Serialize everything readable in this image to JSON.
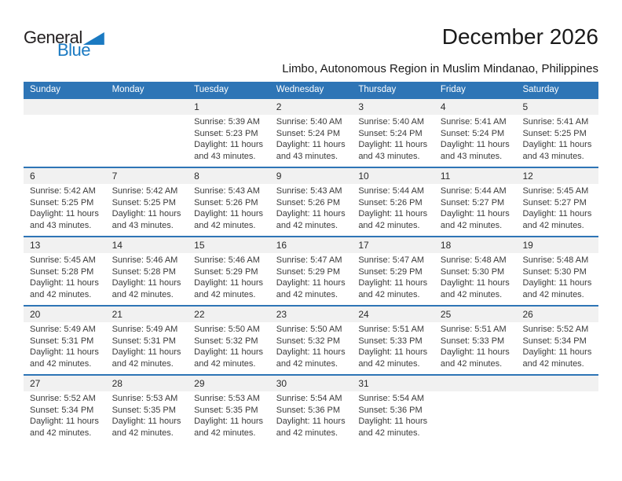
{
  "logo": {
    "part1": "General",
    "part2": "Blue"
  },
  "header": {
    "title": "December 2026",
    "subtitle": "Limbo, Autonomous Region in Muslim Mindanao, Philippines"
  },
  "colors": {
    "accent_blue": "#2E75B6",
    "logo_blue": "#1B7AC2",
    "number_strip_gray": "#F1F1F1"
  },
  "calendar": {
    "weekday_headers": [
      "Sunday",
      "Monday",
      "Tuesday",
      "Wednesday",
      "Thursday",
      "Friday",
      "Saturday"
    ],
    "labels": {
      "sunrise": "Sunrise:",
      "sunset": "Sunset:",
      "daylight": "Daylight:"
    },
    "weeks": [
      [
        {
          "day": null
        },
        {
          "day": null
        },
        {
          "day": "1",
          "sunrise": "5:39 AM",
          "sunset": "5:23 PM",
          "daylight": "11 hours and 43 minutes."
        },
        {
          "day": "2",
          "sunrise": "5:40 AM",
          "sunset": "5:24 PM",
          "daylight": "11 hours and 43 minutes."
        },
        {
          "day": "3",
          "sunrise": "5:40 AM",
          "sunset": "5:24 PM",
          "daylight": "11 hours and 43 minutes."
        },
        {
          "day": "4",
          "sunrise": "5:41 AM",
          "sunset": "5:24 PM",
          "daylight": "11 hours and 43 minutes."
        },
        {
          "day": "5",
          "sunrise": "5:41 AM",
          "sunset": "5:25 PM",
          "daylight": "11 hours and 43 minutes."
        }
      ],
      [
        {
          "day": "6",
          "sunrise": "5:42 AM",
          "sunset": "5:25 PM",
          "daylight": "11 hours and 43 minutes."
        },
        {
          "day": "7",
          "sunrise": "5:42 AM",
          "sunset": "5:25 PM",
          "daylight": "11 hours and 43 minutes."
        },
        {
          "day": "8",
          "sunrise": "5:43 AM",
          "sunset": "5:26 PM",
          "daylight": "11 hours and 42 minutes."
        },
        {
          "day": "9",
          "sunrise": "5:43 AM",
          "sunset": "5:26 PM",
          "daylight": "11 hours and 42 minutes."
        },
        {
          "day": "10",
          "sunrise": "5:44 AM",
          "sunset": "5:26 PM",
          "daylight": "11 hours and 42 minutes."
        },
        {
          "day": "11",
          "sunrise": "5:44 AM",
          "sunset": "5:27 PM",
          "daylight": "11 hours and 42 minutes."
        },
        {
          "day": "12",
          "sunrise": "5:45 AM",
          "sunset": "5:27 PM",
          "daylight": "11 hours and 42 minutes."
        }
      ],
      [
        {
          "day": "13",
          "sunrise": "5:45 AM",
          "sunset": "5:28 PM",
          "daylight": "11 hours and 42 minutes."
        },
        {
          "day": "14",
          "sunrise": "5:46 AM",
          "sunset": "5:28 PM",
          "daylight": "11 hours and 42 minutes."
        },
        {
          "day": "15",
          "sunrise": "5:46 AM",
          "sunset": "5:29 PM",
          "daylight": "11 hours and 42 minutes."
        },
        {
          "day": "16",
          "sunrise": "5:47 AM",
          "sunset": "5:29 PM",
          "daylight": "11 hours and 42 minutes."
        },
        {
          "day": "17",
          "sunrise": "5:47 AM",
          "sunset": "5:29 PM",
          "daylight": "11 hours and 42 minutes."
        },
        {
          "day": "18",
          "sunrise": "5:48 AM",
          "sunset": "5:30 PM",
          "daylight": "11 hours and 42 minutes."
        },
        {
          "day": "19",
          "sunrise": "5:48 AM",
          "sunset": "5:30 PM",
          "daylight": "11 hours and 42 minutes."
        }
      ],
      [
        {
          "day": "20",
          "sunrise": "5:49 AM",
          "sunset": "5:31 PM",
          "daylight": "11 hours and 42 minutes."
        },
        {
          "day": "21",
          "sunrise": "5:49 AM",
          "sunset": "5:31 PM",
          "daylight": "11 hours and 42 minutes."
        },
        {
          "day": "22",
          "sunrise": "5:50 AM",
          "sunset": "5:32 PM",
          "daylight": "11 hours and 42 minutes."
        },
        {
          "day": "23",
          "sunrise": "5:50 AM",
          "sunset": "5:32 PM",
          "daylight": "11 hours and 42 minutes."
        },
        {
          "day": "24",
          "sunrise": "5:51 AM",
          "sunset": "5:33 PM",
          "daylight": "11 hours and 42 minutes."
        },
        {
          "day": "25",
          "sunrise": "5:51 AM",
          "sunset": "5:33 PM",
          "daylight": "11 hours and 42 minutes."
        },
        {
          "day": "26",
          "sunrise": "5:52 AM",
          "sunset": "5:34 PM",
          "daylight": "11 hours and 42 minutes."
        }
      ],
      [
        {
          "day": "27",
          "sunrise": "5:52 AM",
          "sunset": "5:34 PM",
          "daylight": "11 hours and 42 minutes."
        },
        {
          "day": "28",
          "sunrise": "5:53 AM",
          "sunset": "5:35 PM",
          "daylight": "11 hours and 42 minutes."
        },
        {
          "day": "29",
          "sunrise": "5:53 AM",
          "sunset": "5:35 PM",
          "daylight": "11 hours and 42 minutes."
        },
        {
          "day": "30",
          "sunrise": "5:54 AM",
          "sunset": "5:36 PM",
          "daylight": "11 hours and 42 minutes."
        },
        {
          "day": "31",
          "sunrise": "5:54 AM",
          "sunset": "5:36 PM",
          "daylight": "11 hours and 42 minutes."
        },
        {
          "day": null
        },
        {
          "day": null
        }
      ]
    ]
  }
}
